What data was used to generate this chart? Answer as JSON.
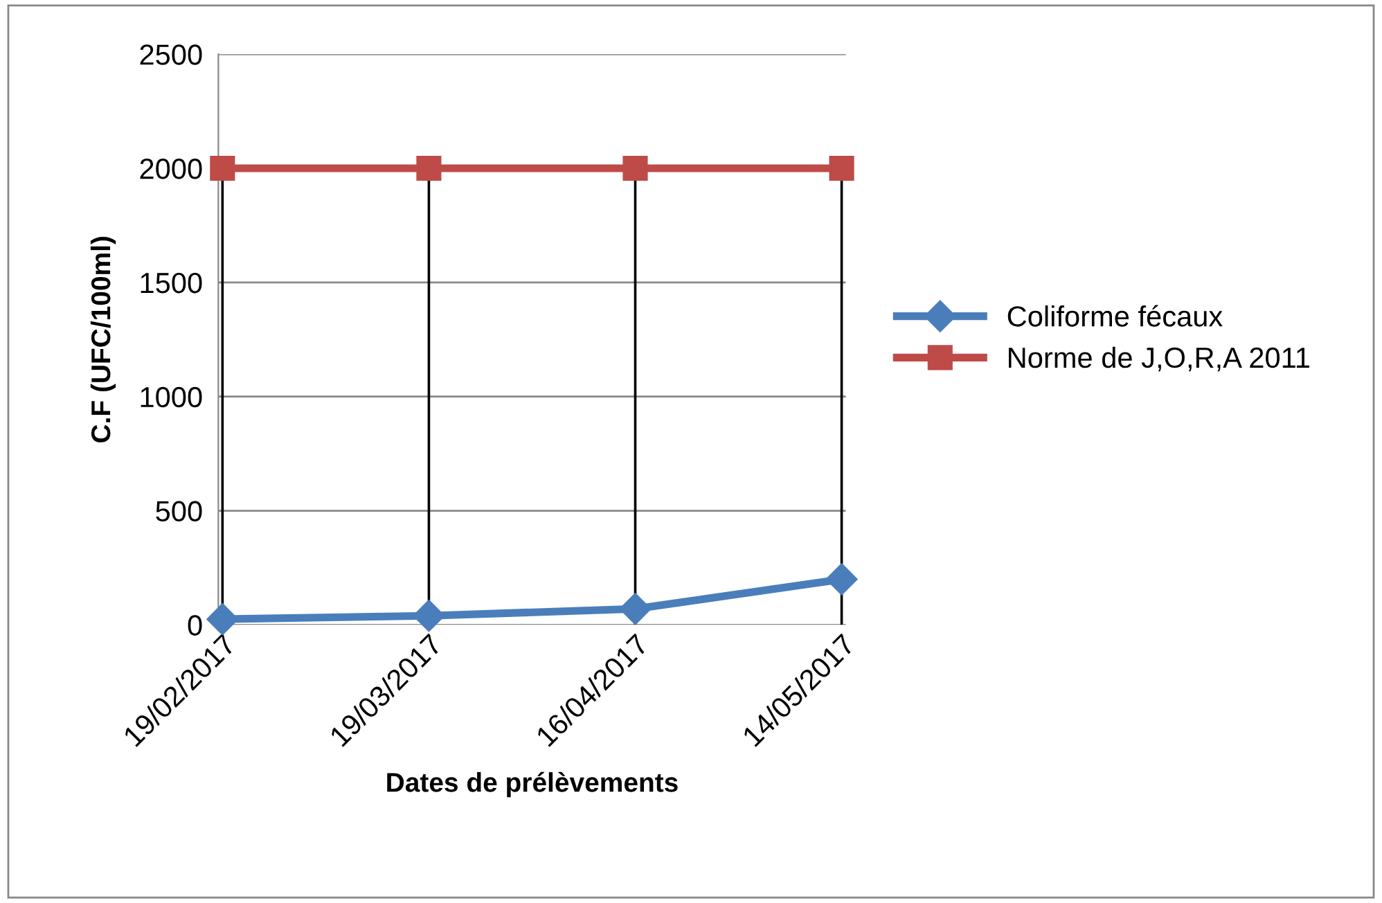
{
  "chart_data": {
    "type": "line",
    "xlabel": "Dates de prélèvements",
    "ylabel": "C.F (UFC/100ml)",
    "categories": [
      "19/02/2017",
      "19/03/2017",
      "16/04/2017",
      "14/05/2017"
    ],
    "series": [
      {
        "name": "Coliforme fécaux",
        "color": "#4a7ebb",
        "marker": "diamond",
        "values": [
          25,
          40,
          70,
          200
        ]
      },
      {
        "name": "Norme de J,O,R,A 2011",
        "color": "#be4b48",
        "marker": "square",
        "values": [
          2000,
          2000,
          2000,
          2000
        ]
      }
    ],
    "ylim": [
      0,
      2500
    ],
    "yticks": [
      0,
      500,
      1000,
      1500,
      2000,
      2500
    ],
    "grid": true,
    "legend": "right",
    "line_style": "solid"
  }
}
